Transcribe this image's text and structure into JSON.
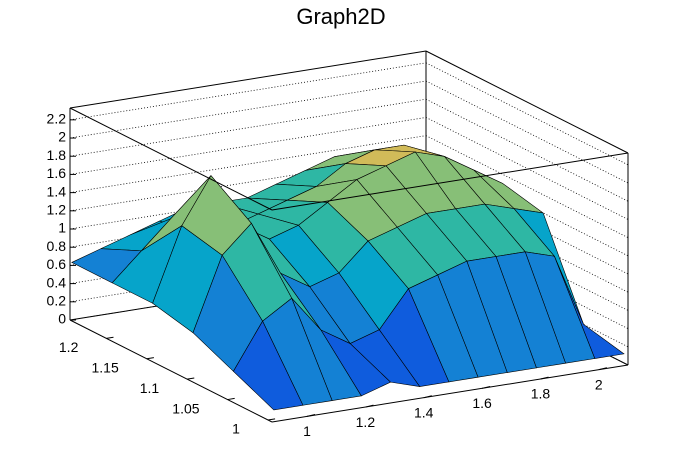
{
  "chart_data": {
    "type": "surface",
    "title": "Graph2D",
    "x": [
      0.9,
      1.0,
      1.1,
      1.2,
      1.3,
      1.4,
      1.5,
      1.6,
      1.7,
      1.8,
      1.9,
      2.0,
      2.1
    ],
    "y": [
      1.0,
      1.05,
      1.1,
      1.15,
      1.2,
      1.25
    ],
    "values": [
      [
        0.1,
        0.1,
        0.1,
        0.1,
        0.2,
        0.1,
        0.1,
        0.1,
        0.1,
        0.1,
        0.1,
        0.1,
        0.1
      ],
      [
        0.3,
        0.8,
        1.0,
        0.6,
        0.4,
        0.5,
        0.9,
        1.0,
        1.1,
        1.1,
        1.1,
        1.0,
        0.2
      ],
      [
        0.5,
        1.3,
        1.6,
        1.0,
        0.8,
        0.9,
        1.2,
        1.3,
        1.4,
        1.4,
        1.4,
        1.3,
        1.2
      ],
      [
        0.6,
        1.4,
        1.9,
        1.3,
        1.1,
        1.2,
        1.4,
        1.6,
        1.7,
        1.8,
        1.7,
        1.5,
        1.3
      ],
      [
        0.6,
        0.9,
        1.2,
        1.0,
        1.0,
        1.1,
        1.2,
        1.3,
        1.5,
        1.6,
        1.6,
        1.4,
        1.2
      ],
      [
        0.6,
        0.7,
        0.8,
        0.9,
        1.0,
        1.0,
        1.0,
        1.1,
        1.2,
        1.3,
        1.3,
        1.2,
        1.1
      ]
    ],
    "xlim": [
      0.88,
      2.1
    ],
    "ylim": [
      0.995,
      1.245
    ],
    "zlim": [
      0,
      2.33
    ],
    "xticks": [
      1,
      1.2,
      1.4,
      1.6,
      1.8,
      2
    ],
    "yticks": [
      1,
      1.05,
      1.1,
      1.15,
      1.2
    ],
    "zticks": [
      0,
      0.2,
      0.4,
      0.6,
      0.8,
      1,
      1.2,
      1.4,
      1.6,
      1.8,
      2,
      2.2
    ],
    "grid": true,
    "palette": [
      "#352a87",
      "#0f5cdd",
      "#1481d4",
      "#06a4ca",
      "#2eb7a4",
      "#87bf77",
      "#d1bb59",
      "#fec832",
      "#f9fb0e"
    ]
  }
}
